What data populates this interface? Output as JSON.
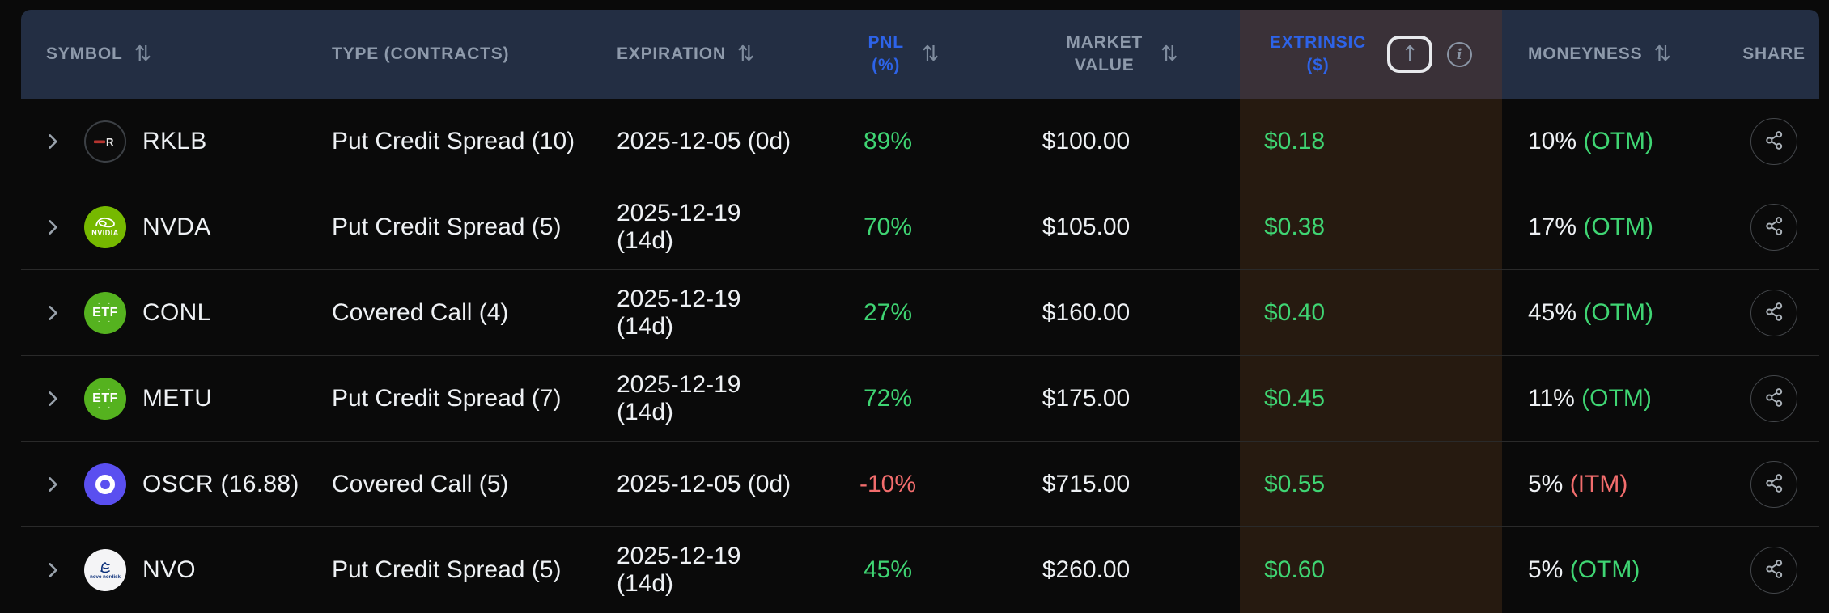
{
  "table": {
    "sort_glyph": "⇅",
    "columns": [
      {
        "id": "symbol",
        "line1": "SYMBOL",
        "line2": "",
        "sortable": true,
        "accent": false
      },
      {
        "id": "type",
        "line1": "TYPE (CONTRACTS)",
        "line2": "",
        "sortable": false,
        "accent": false
      },
      {
        "id": "expiration",
        "line1": "EXPIRATION",
        "line2": "",
        "sortable": true,
        "accent": false
      },
      {
        "id": "pnl",
        "line1": "PNL",
        "line2": "(%)",
        "sortable": true,
        "accent": true
      },
      {
        "id": "market-value",
        "line1": "MARKET",
        "line2": "VALUE",
        "sortable": true,
        "accent": false
      },
      {
        "id": "extrinsic",
        "line1": "EXTRINSIC",
        "line2": "($)",
        "sortable": true,
        "accent": true,
        "sort_button_glyph": "↑",
        "info_glyph": "i",
        "sort_direction": "ascending"
      },
      {
        "id": "moneyness",
        "line1": "MONEYNESS",
        "line2": "",
        "sortable": true,
        "accent": false
      },
      {
        "id": "share",
        "line1": "SHARE",
        "line2": "",
        "sortable": false,
        "accent": false
      }
    ],
    "rows": [
      {
        "symbol": "RKLB",
        "icon": "rocket-lab-logo",
        "icon_style": "rklb",
        "type": "Put Credit Spread (10)",
        "expiration": "2025-12-05 (0d)",
        "pnl": "89%",
        "pnl_state": "positive",
        "market_value": "$100.00",
        "extrinsic": "$0.18",
        "moneyness_value": "10%",
        "moneyness_tag": "(OTM)",
        "moneyness_state": "OTM"
      },
      {
        "symbol": "NVDA",
        "icon": "nvidia-logo",
        "icon_style": "nvda",
        "type": "Put Credit Spread (5)",
        "expiration": "2025-12-19 (14d)",
        "pnl": "70%",
        "pnl_state": "positive",
        "market_value": "$105.00",
        "extrinsic": "$0.38",
        "moneyness_value": "17%",
        "moneyness_tag": "(OTM)",
        "moneyness_state": "OTM"
      },
      {
        "symbol": "CONL",
        "icon": "etf-badge",
        "icon_style": "etf",
        "type": "Covered Call (4)",
        "expiration": "2025-12-19 (14d)",
        "pnl": "27%",
        "pnl_state": "positive",
        "market_value": "$160.00",
        "extrinsic": "$0.40",
        "moneyness_value": "45%",
        "moneyness_tag": "(OTM)",
        "moneyness_state": "OTM"
      },
      {
        "symbol": "METU",
        "icon": "etf-badge",
        "icon_style": "etf",
        "type": "Put Credit Spread (7)",
        "expiration": "2025-12-19 (14d)",
        "pnl": "72%",
        "pnl_state": "positive",
        "market_value": "$175.00",
        "extrinsic": "$0.45",
        "moneyness_value": "11%",
        "moneyness_tag": "(OTM)",
        "moneyness_state": "OTM"
      },
      {
        "symbol": "OSCR (16.88)",
        "icon": "oscar-health-logo",
        "icon_style": "oscr",
        "type": "Covered Call (5)",
        "expiration": "2025-12-05 (0d)",
        "pnl": "-10%",
        "pnl_state": "negative",
        "market_value": "$715.00",
        "extrinsic": "$0.55",
        "moneyness_value": "5%",
        "moneyness_tag": "(ITM)",
        "moneyness_state": "ITM"
      },
      {
        "symbol": "NVO",
        "icon": "novo-nordisk-logo",
        "icon_style": "nvo",
        "type": "Put Credit Spread (5)",
        "expiration": "2025-12-19 (14d)",
        "pnl": "45%",
        "pnl_state": "positive",
        "market_value": "$260.00",
        "extrinsic": "$0.60",
        "moneyness_value": "5%",
        "moneyness_tag": "(OTM)",
        "moneyness_state": "OTM"
      }
    ]
  },
  "icon_labels": {
    "nvda_brand": "NVIDIA",
    "etf_badge": "ETF",
    "nvo_brand": "novo nordisk"
  },
  "colors": {
    "page_bg": "#0a0a0a",
    "header_bg": "#232e43",
    "header_text": "#8e9aab",
    "accent_blue": "#2d63e8",
    "positive_green": "#3fd573",
    "negative_red": "#f26d6d",
    "extrinsic_header_bg": "#3a3138",
    "extrinsic_column_bg": "#261a10",
    "nvidia_green": "#76b900",
    "etf_green": "#55b21f",
    "oscar_indigo": "#5a4ff0"
  }
}
